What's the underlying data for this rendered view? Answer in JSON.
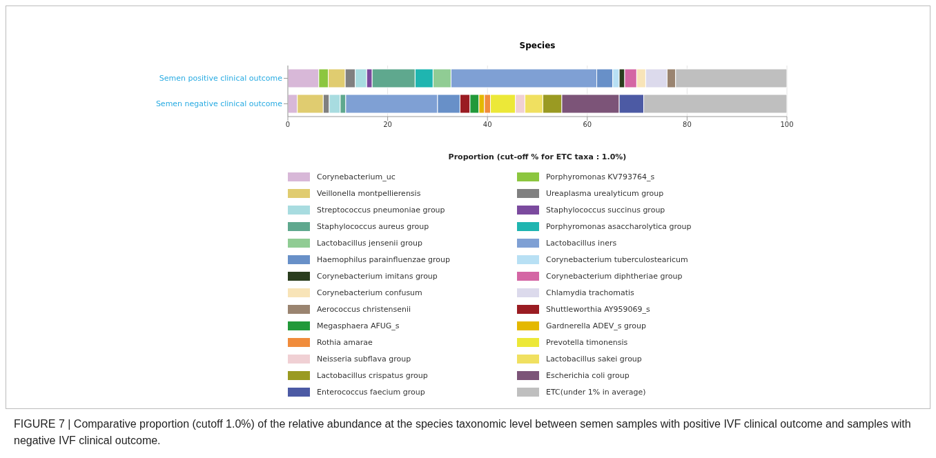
{
  "chart_data": {
    "type": "bar",
    "orientation": "horizontal",
    "stacked": true,
    "title": "Species",
    "xlabel": "Proportion (cut-off % for ETC taxa : 1.0%)",
    "categories": [
      "Semen positive clinical outcome",
      "Semen negative clinical outcome"
    ],
    "xlim": [
      0,
      100
    ],
    "xticks": [
      0,
      20,
      40,
      60,
      80,
      100
    ],
    "grid": "x",
    "legend": "bottom",
    "series": [
      {
        "name": "Corynebacterium_uc",
        "color": "#d8b8d8",
        "values": [
          6.2,
          1.9
        ]
      },
      {
        "name": "Porphyromonas KV793764_s",
        "color": "#8cc63f",
        "values": [
          1.9,
          null
        ]
      },
      {
        "name": "Veillonella montpellierensis",
        "color": "#e0cc70",
        "values": [
          3.4,
          5.2
        ]
      },
      {
        "name": "Ureaplasma urealyticum group",
        "color": "#808080",
        "values": [
          2.0,
          1.2
        ]
      },
      {
        "name": "Streptococcus pneumoniae group",
        "color": "#a8dce0",
        "values": [
          2.3,
          2.2
        ]
      },
      {
        "name": "Staphylococcus succinus group",
        "color": "#7b4a9e",
        "values": [
          1.1,
          null
        ]
      },
      {
        "name": "Staphylococcus aureus group",
        "color": "#5fa88e",
        "values": [
          8.6,
          1.1
        ]
      },
      {
        "name": "Porphyromonas asaccharolytica group",
        "color": "#1fb5b0",
        "values": [
          3.6,
          null
        ]
      },
      {
        "name": "Lactobacillus jensenii group",
        "color": "#90cc94",
        "values": [
          3.6,
          null
        ]
      },
      {
        "name": "Lactobacillus iners",
        "color": "#7fa0d4",
        "values": [
          29.2,
          18.4
        ]
      },
      {
        "name": "Haemophilus parainfluenzae group",
        "color": "#6890c8",
        "values": [
          3.2,
          4.5
        ]
      },
      {
        "name": "Corynebacterium tuberculostearicum",
        "color": "#b8e0f4",
        "values": [
          1.3,
          null
        ]
      },
      {
        "name": "Corynebacterium imitans group",
        "color": "#2a3d1e",
        "values": [
          1.1,
          null
        ]
      },
      {
        "name": "Corynebacterium diphtheriae group",
        "color": "#d466a4",
        "values": [
          2.4,
          null
        ]
      },
      {
        "name": "Corynebacterium confusum",
        "color": "#f8e4b8",
        "values": [
          1.8,
          null
        ]
      },
      {
        "name": "Chlamydia trachomatis",
        "color": "#dcdaec",
        "values": [
          4.3,
          null
        ]
      },
      {
        "name": "Aerococcus christensenii",
        "color": "#9a8470",
        "values": [
          1.7,
          null
        ]
      },
      {
        "name": "Shuttleworthia AY959069_s",
        "color": "#9a1c22",
        "values": [
          null,
          2.0
        ]
      },
      {
        "name": "Megasphaera AFUG_s",
        "color": "#22993a",
        "values": [
          null,
          1.8
        ]
      },
      {
        "name": "Gardnerella ADEV_s group",
        "color": "#e4b800",
        "values": [
          null,
          1.1
        ]
      },
      {
        "name": "Rothia amarae",
        "color": "#f08c3c",
        "values": [
          null,
          1.2
        ]
      },
      {
        "name": "Prevotella timonensis",
        "color": "#ece838",
        "values": [
          null,
          5.0
        ]
      },
      {
        "name": "Neisseria subflava group",
        "color": "#f0d0d4",
        "values": [
          null,
          1.9
        ]
      },
      {
        "name": "Lactobacillus sakei group",
        "color": "#f0e060",
        "values": [
          null,
          3.6
        ]
      },
      {
        "name": "Lactobacillus crispatus group",
        "color": "#9a9a22",
        "values": [
          null,
          3.8
        ]
      },
      {
        "name": "Escherichia coli group",
        "color": "#7c5478",
        "values": [
          null,
          11.5
        ]
      },
      {
        "name": "Enterococcus faecium group",
        "color": "#4c5aa4",
        "values": [
          null,
          4.9
        ]
      },
      {
        "name": "ETC(under 1% in average)",
        "color": "#bfbfbf",
        "values": [
          22.3,
          28.7
        ]
      }
    ],
    "annotations": [
      "FIGURE 7 | Comparative proportion (cutoff 1.0%) of the relative abundance at the species taxonomic level between semen samples with positive IVF clinical outcome and samples with negative IVF clinical outcome."
    ]
  }
}
